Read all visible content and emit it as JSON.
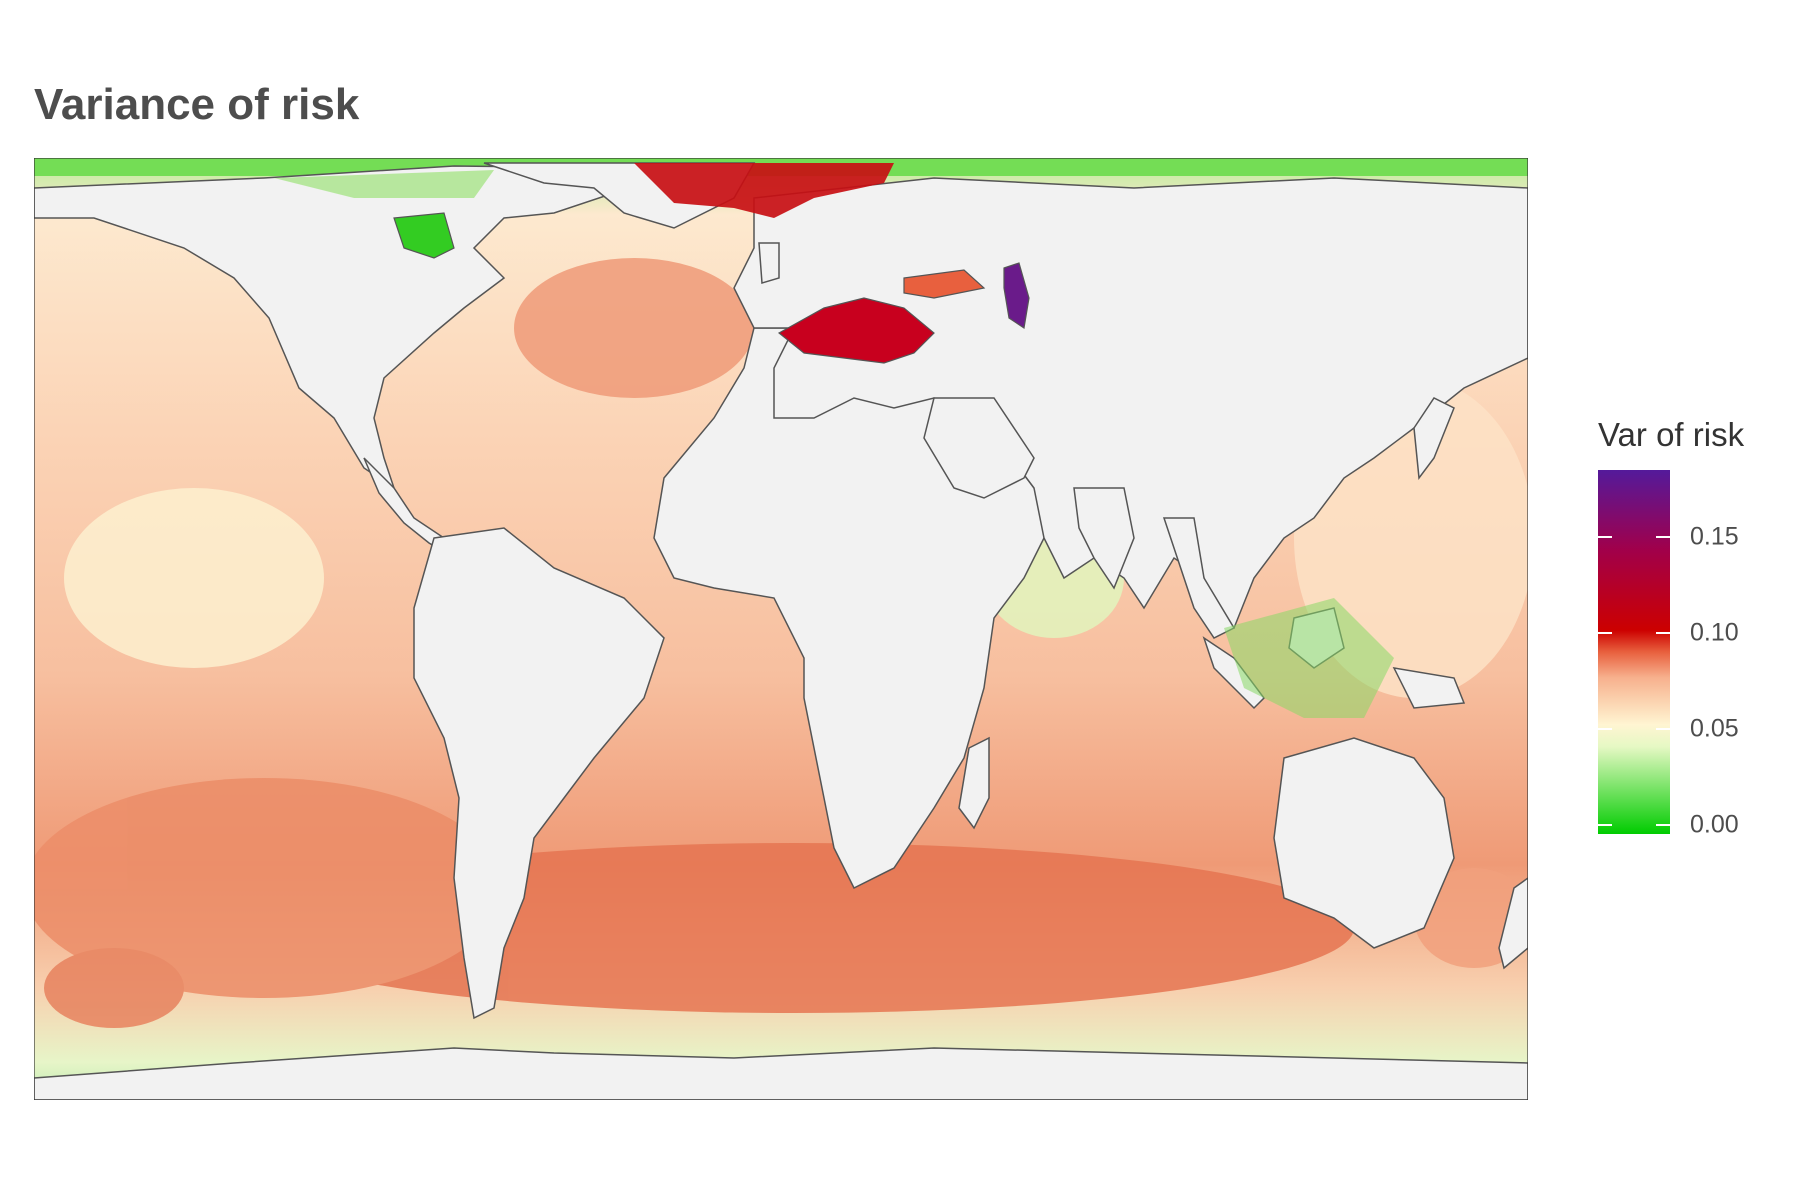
{
  "title": "Variance of risk",
  "legend": {
    "title": "Var of risk",
    "ticks": [
      "0.15",
      "0.10",
      "0.05",
      "0.00"
    ],
    "tick_values": [
      0.15,
      0.1,
      0.05,
      0.0
    ],
    "range": [
      0.0,
      0.19
    ],
    "colors": {
      "low": "#00cc00",
      "mid_low": "#fff5d2",
      "mid": "#e8603e",
      "high": "#cc0000",
      "max": "#541a9b"
    }
  },
  "map": {
    "projection": "equirectangular-like world map",
    "land_color": "#f2f2f2",
    "coastline_color": "#555555",
    "regions": [
      {
        "name": "Mediterranean Sea",
        "level": "high",
        "value": 0.11
      },
      {
        "name": "Caspian Sea",
        "level": "max",
        "value": 0.17
      },
      {
        "name": "North Sea / Norwegian Sea",
        "level": "high",
        "value": 0.1
      },
      {
        "name": "Black Sea",
        "level": "mid",
        "value": 0.07
      },
      {
        "name": "Southern Ocean band",
        "level": "mid",
        "value": 0.07
      },
      {
        "name": "Hudson Bay",
        "level": "low",
        "value": 0.0
      },
      {
        "name": "Indonesian seas / shelf",
        "level": "low",
        "value": 0.01
      }
    ]
  }
}
